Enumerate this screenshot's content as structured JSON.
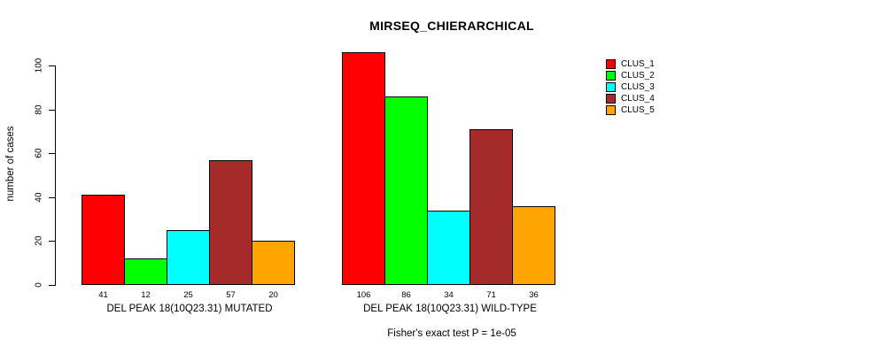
{
  "title": "MIRSEQ_CHIERARCHICAL",
  "ylabel": "number of cases",
  "footer": "Fisher's exact test P = 1e-05",
  "chart_data": {
    "type": "bar",
    "title": "MIRSEQ_CHIERARCHICAL",
    "xlabel": "",
    "ylabel": "number of cases",
    "categories": [
      "DEL PEAK 18(10Q23.31) MUTATED",
      "DEL PEAK 18(10Q23.31) WILD-TYPE"
    ],
    "series": [
      {
        "name": "CLUS_1",
        "color": "#FF0000",
        "values": [
          41,
          106
        ]
      },
      {
        "name": "CLUS_2",
        "color": "#00FF00",
        "values": [
          12,
          86
        ]
      },
      {
        "name": "CLUS_3",
        "color": "#00FFFF",
        "values": [
          25,
          34
        ]
      },
      {
        "name": "CLUS_4",
        "color": "#A52A2A",
        "values": [
          57,
          71
        ]
      },
      {
        "name": "CLUS_5",
        "color": "#FFA500",
        "values": [
          20,
          36
        ]
      }
    ],
    "bar_value_labels": [
      [
        41,
        12,
        25,
        57,
        20
      ],
      [
        106,
        86,
        34,
        71,
        36
      ]
    ],
    "yticks": [
      0,
      20,
      40,
      60,
      80,
      100
    ],
    "ylim": [
      0,
      106
    ],
    "grid": false,
    "legend_position": "top-right",
    "annotation": "Fisher's exact test P = 1e-05"
  }
}
